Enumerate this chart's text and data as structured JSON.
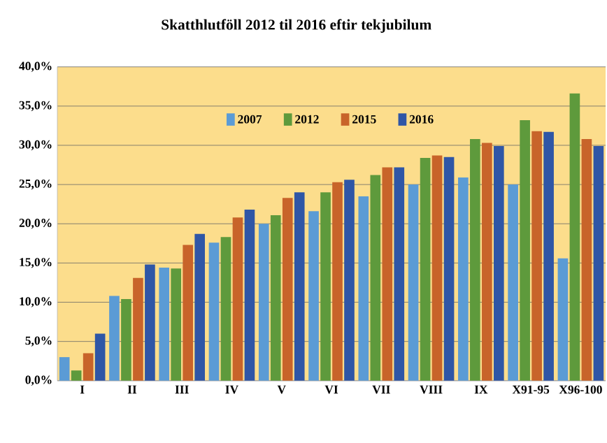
{
  "chart_data": {
    "type": "bar",
    "title": "Skatthlutföll 2012 til 2016 eftir tekjubilum",
    "categories": [
      "I",
      "II",
      "III",
      "IV",
      "V",
      "VI",
      "VII",
      "VIII",
      "IX",
      "X91-95",
      "X96-100"
    ],
    "series": [
      {
        "name": "2007",
        "color": "#5b9bd5",
        "values": [
          3.0,
          10.8,
          14.4,
          17.6,
          20.0,
          21.6,
          23.5,
          25.0,
          25.9,
          25.0,
          15.6
        ]
      },
      {
        "name": "2012",
        "color": "#5e9a3c",
        "values": [
          1.3,
          10.4,
          14.3,
          18.3,
          21.1,
          24.0,
          26.2,
          28.4,
          30.8,
          33.2,
          36.6
        ]
      },
      {
        "name": "2015",
        "color": "#c8642a",
        "values": [
          3.5,
          13.1,
          17.3,
          20.8,
          23.3,
          25.3,
          27.2,
          28.7,
          30.3,
          31.8,
          30.8
        ]
      },
      {
        "name": "2016",
        "color": "#2f56a6",
        "values": [
          6.0,
          14.8,
          18.7,
          21.8,
          24.0,
          25.6,
          27.2,
          28.5,
          29.9,
          31.7,
          29.9
        ]
      }
    ],
    "ylim": [
      0,
      40
    ],
    "yticks": [
      {
        "value": 0,
        "label": "0,0%"
      },
      {
        "value": 5,
        "label": "5,0%"
      },
      {
        "value": 10,
        "label": "10,0%"
      },
      {
        "value": 15,
        "label": "15,0%"
      },
      {
        "value": 20,
        "label": "20,0%"
      },
      {
        "value": 25,
        "label": "25,0%"
      },
      {
        "value": 30,
        "label": "30,0%"
      },
      {
        "value": 35,
        "label": "35,0%"
      },
      {
        "value": 40,
        "label": "40,0%"
      }
    ],
    "grid": "y",
    "legend": "top"
  }
}
